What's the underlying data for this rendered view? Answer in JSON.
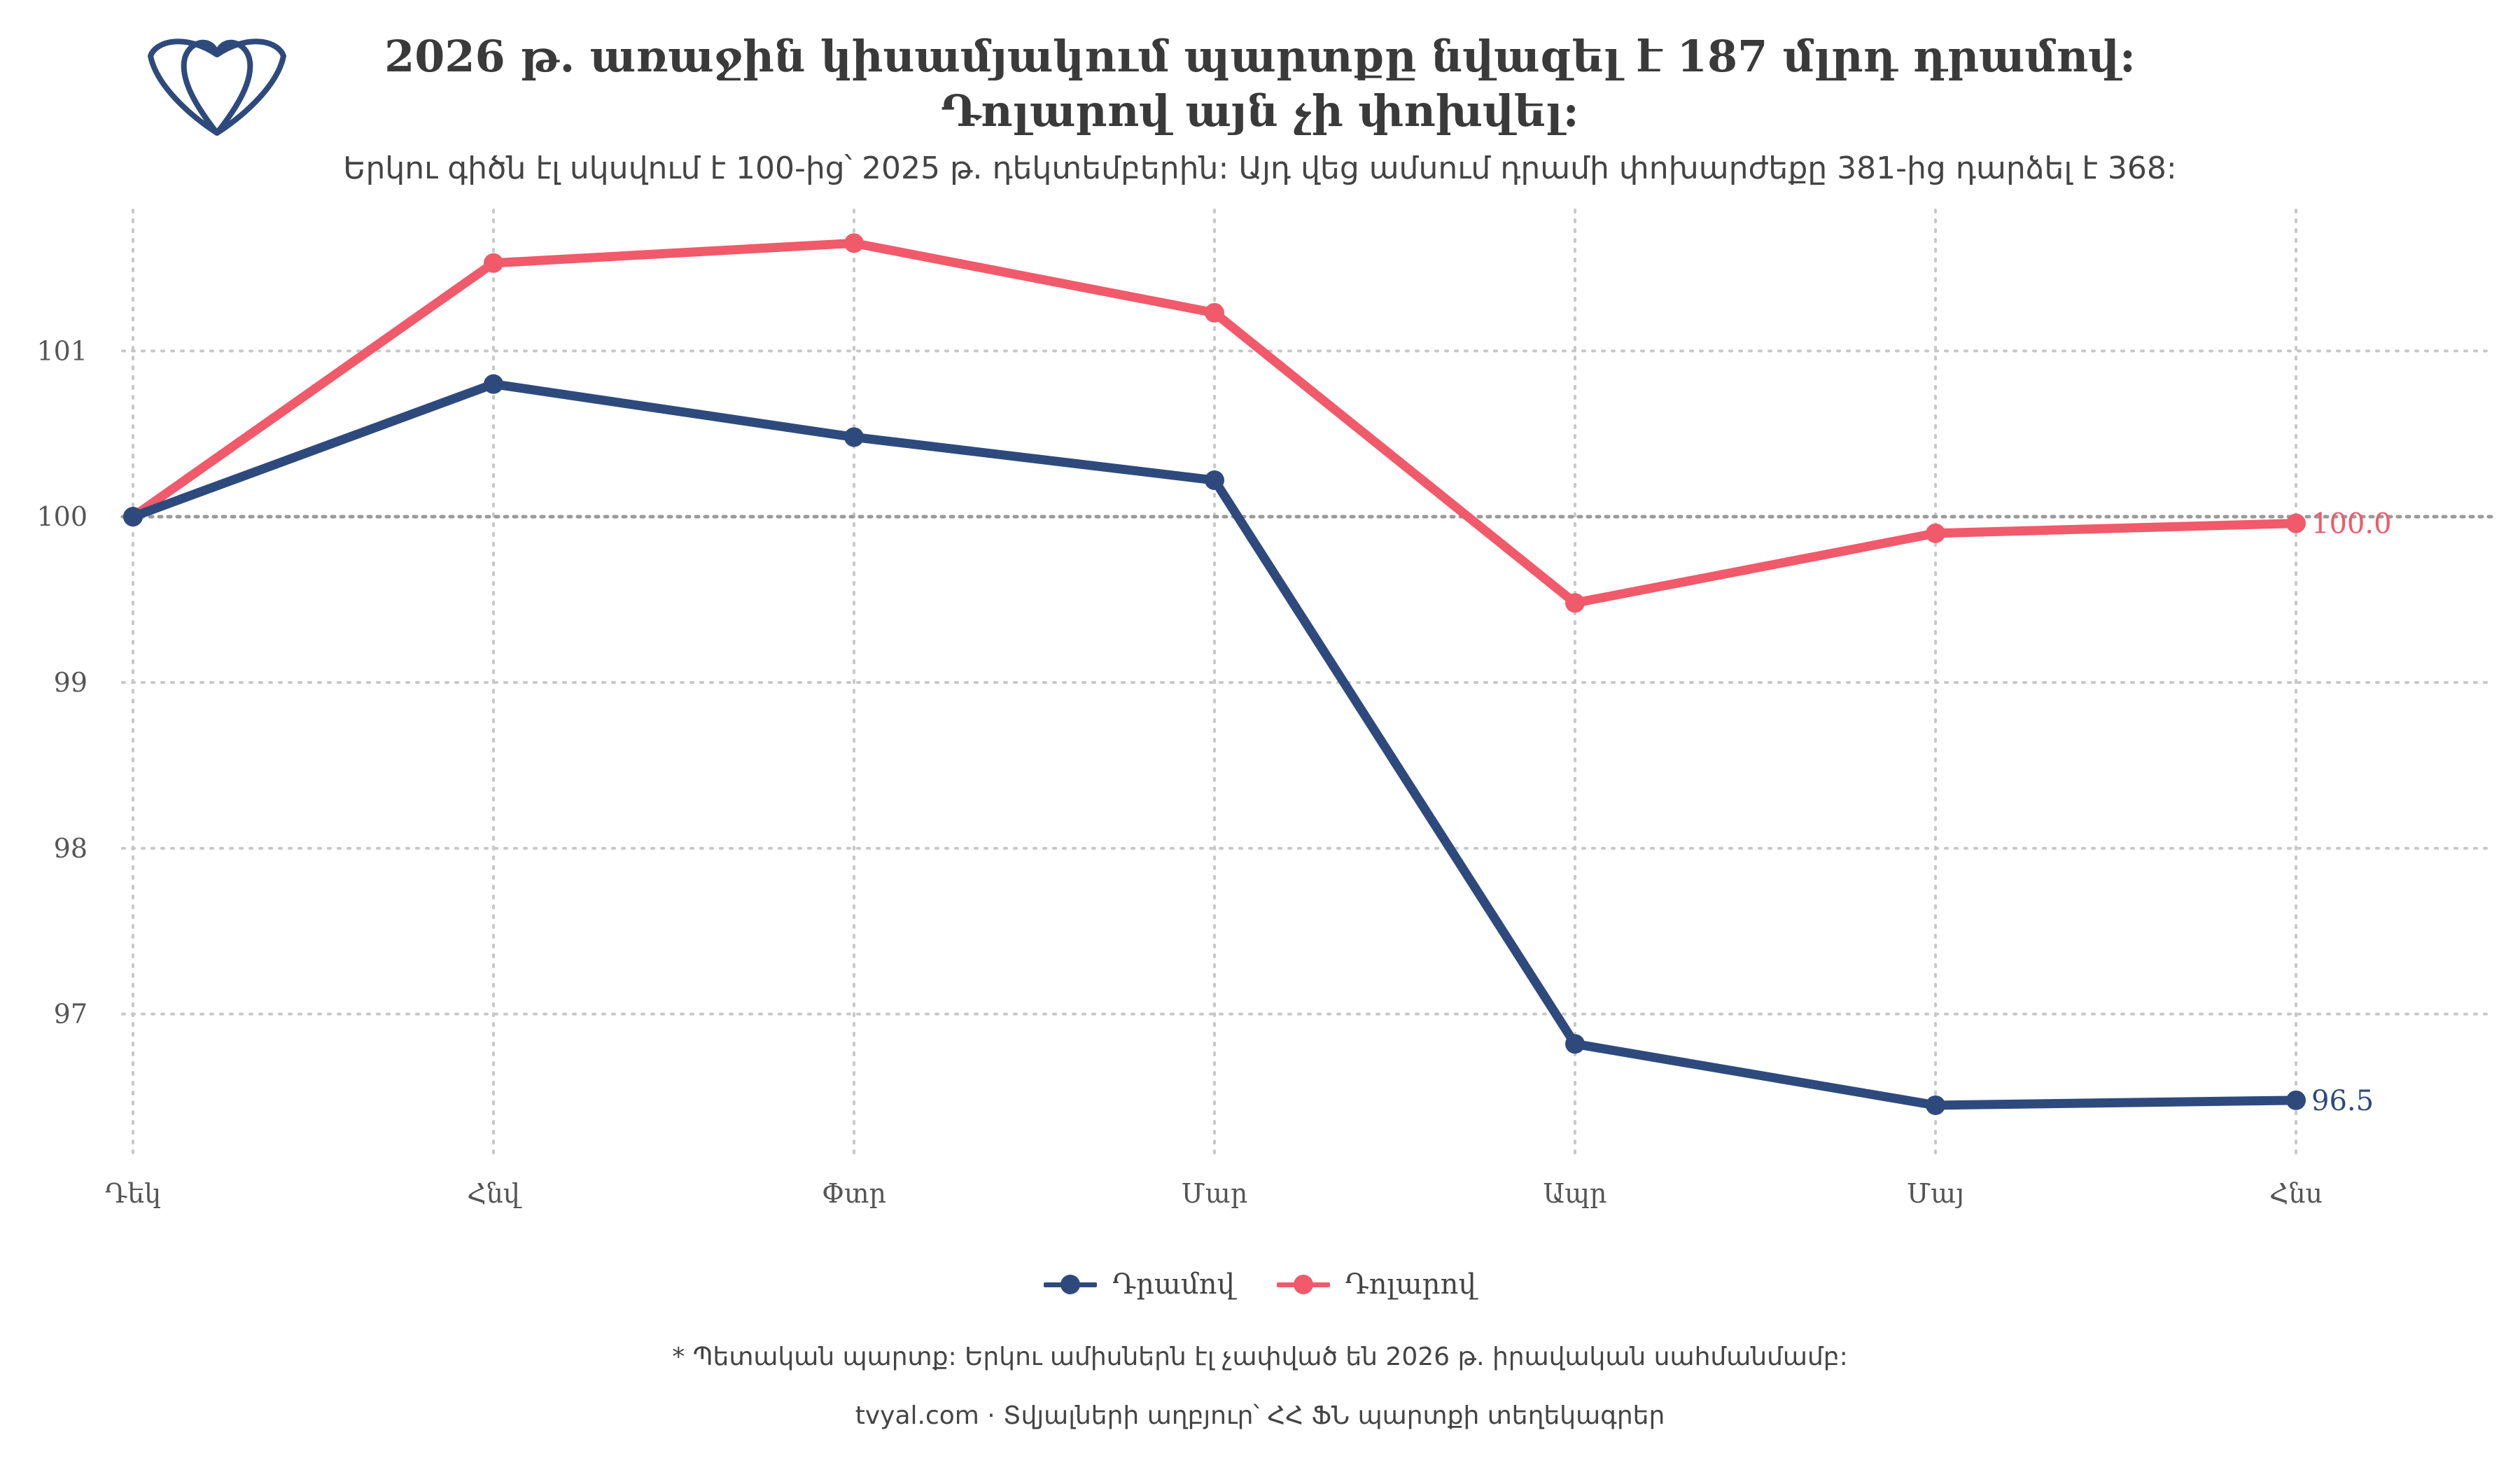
{
  "title_line1": "2026 թ. առաջին կիսամյակում պարտքը նվազել է 187 մլրդ դրամով:",
  "title_line2": "Դոլարով այն չի փոխվել:",
  "subtitle": "Երկու գիծն էլ սկսվում է 100-ից՝ 2025 թ. դեկտեմբերին: Այդ վեց ամսում դրամի փոխարժեքը 381-ից դարձել է 368:",
  "footnote": "* Պետական պարտք: Երկու ամիսներն էլ չափված են 2026 թ. իրավական սահմանմամբ:",
  "caption": "tvyal.com  ·  Տվյալների աղբյուր՝ ՀՀ ՖՆ պարտքի տեղեկագրեր",
  "logo_icon": "tvyal-logo-icon",
  "colors": {
    "dram": "#2e4a7d",
    "dollar": "#f05a6a",
    "grid": "#c8c8c8",
    "baseline": "#9a9a9a"
  },
  "chart_data": {
    "type": "line",
    "categories": [
      "Դեկ",
      "Հնվ",
      "Փտր",
      "Մար",
      "Ապր",
      "Մայ",
      "Հնս"
    ],
    "series": [
      {
        "name": "Դրամով",
        "color": "#2e4a7d",
        "values": [
          100.0,
          100.8,
          100.48,
          100.22,
          96.82,
          96.45,
          96.48
        ],
        "end_label": "96.5"
      },
      {
        "name": "Դոլարով",
        "color": "#f05a6a",
        "values": [
          100.0,
          101.53,
          101.65,
          101.23,
          99.48,
          99.9,
          99.96
        ],
        "end_label": "100.0"
      }
    ],
    "yticks": [
      "97",
      "98",
      "99",
      "100",
      "101"
    ],
    "ylim": [
      96.15,
      101.85
    ],
    "reference_line": 100,
    "grid": true,
    "legend": "bottom"
  }
}
